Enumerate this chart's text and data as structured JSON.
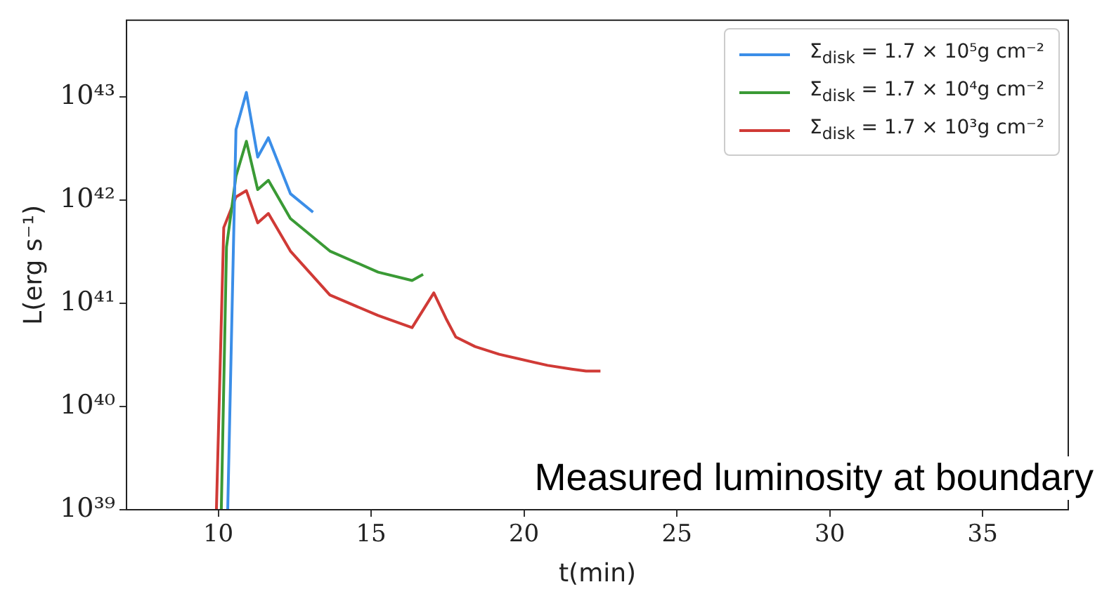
{
  "chart_data": {
    "type": "line",
    "xlabel": "t(min)",
    "ylabel": "L(erg s⁻¹)",
    "log": "y",
    "grid": false,
    "legend": "top right",
    "marker": "none",
    "line_style": "solid",
    "xlim": [
      7,
      37.8
    ],
    "xticks": [
      10,
      15,
      20,
      25,
      30,
      35
    ],
    "ylim": [
      1e+39,
      5.5e+43
    ],
    "yticks": [
      {
        "value": 1e+39,
        "label": "10³⁹"
      },
      {
        "value": 1e+40,
        "label": "10⁴⁰"
      },
      {
        "value": 1e+41,
        "label": "10⁴¹"
      },
      {
        "value": 1e+42,
        "label": "10⁴²"
      },
      {
        "value": 1e+43,
        "label": "10⁴³"
      }
    ],
    "annotations": [
      "Measured luminosity at boundary"
    ],
    "series": [
      {
        "name": "Σ$_{disk}$ = 1.7 × 10⁵g cm⁻²",
        "color": "#3b8ee8",
        "x": [
          10.31,
          10.58,
          10.92,
          11.29,
          11.64,
          12.36,
          13.1
        ],
        "values": [
          1e+39,
          4.8e+42,
          1.1e+43,
          2.6e+42,
          4e+42,
          1.15e+42,
          7.6e+41
        ]
      },
      {
        "name": "Σ$_{disk}$ = 1.7 × 10⁴g cm⁻²",
        "color": "#3a9a35",
        "x": [
          10.1,
          10.27,
          10.58,
          10.92,
          11.29,
          11.64,
          12.36,
          13.65,
          15.23,
          16.34,
          16.7
        ],
        "values": [
          1e+39,
          3.5e+41,
          1.7e+42,
          3.7e+42,
          1.26e+42,
          1.55e+42,
          6.6e+41,
          3.2e+41,
          2e+41,
          1.66e+41,
          1.9e+41
        ]
      },
      {
        "name": "Σ$_{disk}$ = 1.7 × 10³g cm⁻²",
        "color": "#d03a36",
        "x": [
          9.94,
          10.18,
          10.58,
          10.92,
          11.29,
          11.64,
          12.36,
          13.65,
          15.23,
          16.34,
          17.05,
          17.45,
          17.77,
          18.4,
          19.19,
          20.77,
          21.56,
          22.03,
          22.5
        ],
        "values": [
          1e+39,
          5.4e+41,
          1.07e+42,
          1.23e+42,
          6e+41,
          7.4e+41,
          3.2e+41,
          1.2e+41,
          7.6e+40,
          5.8e+40,
          1.26e+41,
          7.1e+40,
          4.7e+40,
          3.8e+40,
          3.2e+40,
          2.5e+40,
          2.3e+40,
          2.2e+40,
          2.2e+40
        ]
      }
    ]
  }
}
